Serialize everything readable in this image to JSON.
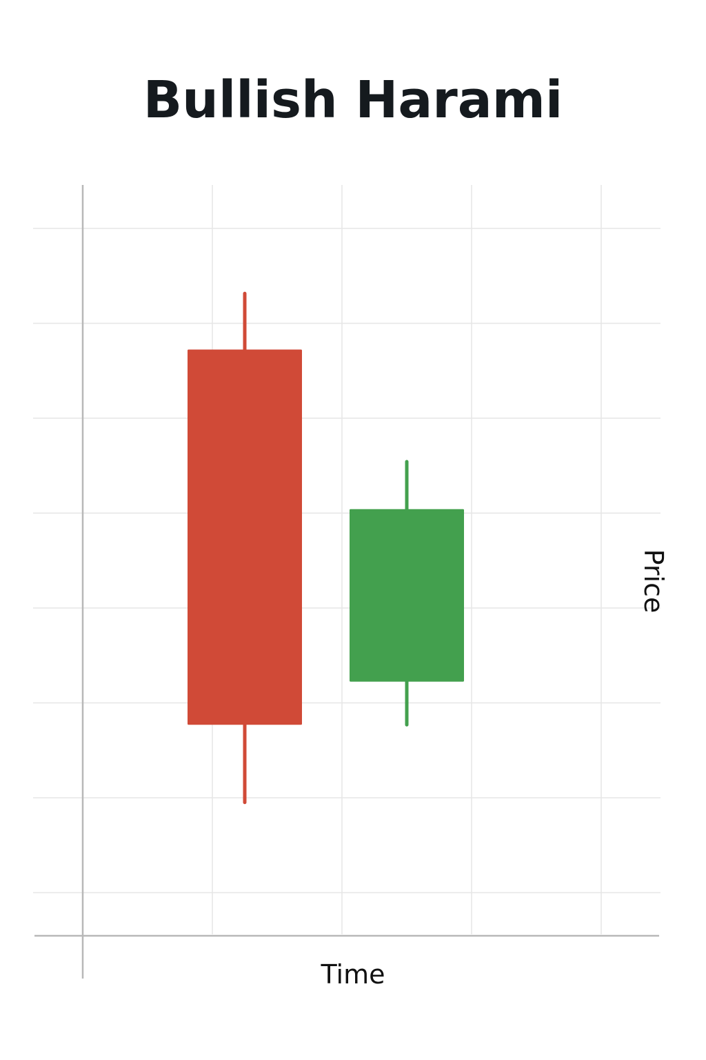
{
  "chart_data": {
    "type": "candlestick",
    "title": "Bullish Harami",
    "xlabel": "Time",
    "ylabel": "Price",
    "grid": true,
    "x_ticks": 5,
    "ylim": [
      0,
      8
    ],
    "candles": [
      {
        "name": "bearish-candle",
        "x": 1.25,
        "open": 6.3,
        "close": 1.95,
        "high": 6.95,
        "low": 1.05,
        "color": "#d04a37"
      },
      {
        "name": "bullish-candle",
        "x": 2.5,
        "open": 2.45,
        "close": 4.45,
        "high": 5.0,
        "low": 1.95,
        "color": "#43a04e"
      }
    ],
    "colors": {
      "grid": "#e6e6e6",
      "axis": "#b8b8b8",
      "title": "#151a1e",
      "text": "#111111"
    }
  }
}
